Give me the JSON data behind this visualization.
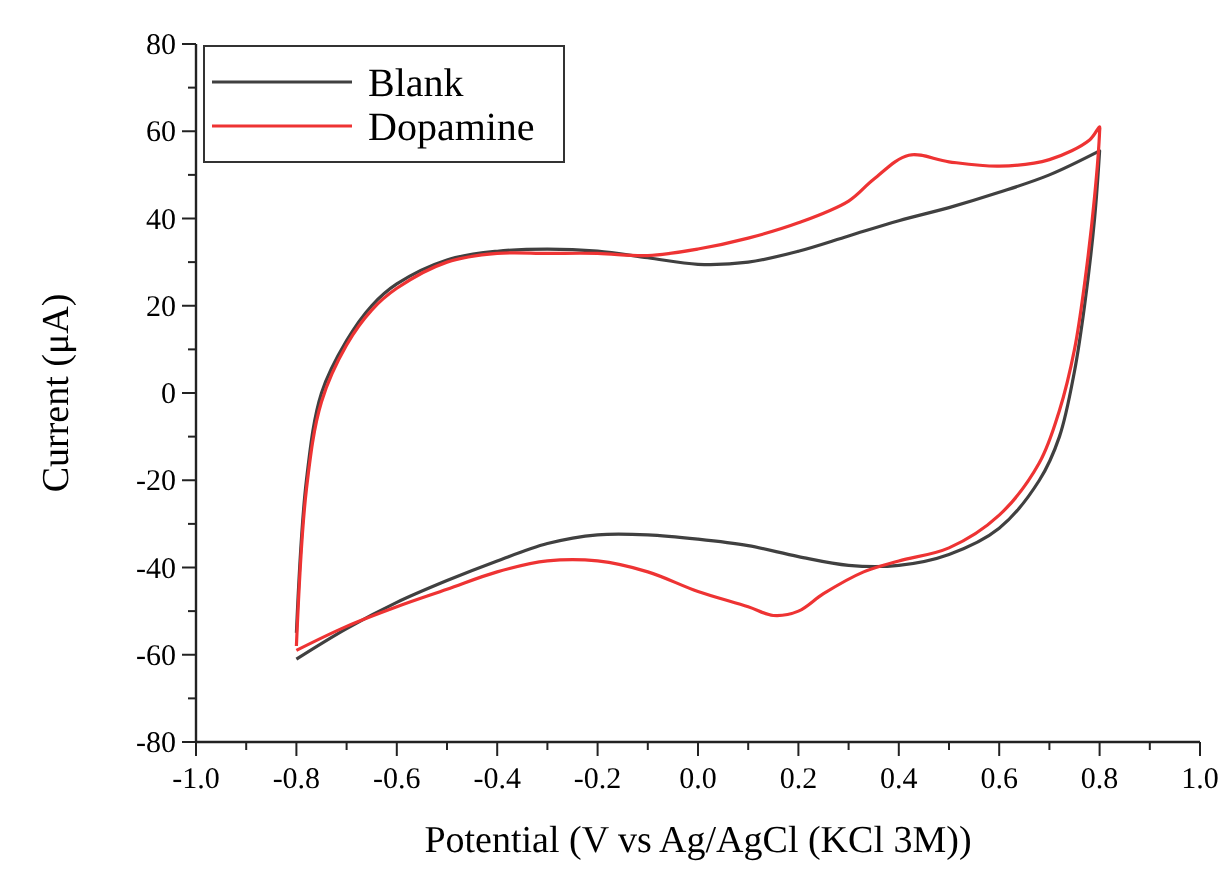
{
  "chart_data": {
    "type": "line",
    "xlabel": "Potential (V vs Ag/AgCl (KCl 3M))",
    "ylabel": "Current (μA)",
    "xlim": [
      -1.0,
      1.0
    ],
    "xticks": [
      {
        "value": -1.0,
        "label": "-1.0"
      },
      {
        "value": -0.9,
        "label": null
      },
      {
        "value": -0.8,
        "label": "-0.8"
      },
      {
        "value": -0.7,
        "label": null
      },
      {
        "value": -0.6,
        "label": "-0.6"
      },
      {
        "value": -0.5,
        "label": null
      },
      {
        "value": -0.4,
        "label": "-0.4"
      },
      {
        "value": -0.3,
        "label": null
      },
      {
        "value": -0.2,
        "label": "-0.2"
      },
      {
        "value": -0.1,
        "label": null
      },
      {
        "value": 0,
        "label": "0.0"
      },
      {
        "value": 0.1,
        "label": null
      },
      {
        "value": 0.2,
        "label": "0.2"
      },
      {
        "value": 0.3,
        "label": null
      },
      {
        "value": 0.4,
        "label": "0.4"
      },
      {
        "value": 0.5,
        "label": null
      },
      {
        "value": 0.6,
        "label": "0.6"
      },
      {
        "value": 0.7,
        "label": null
      },
      {
        "value": 0.8,
        "label": "0.8"
      },
      {
        "value": 0.9,
        "label": null
      },
      {
        "value": 1.0,
        "label": "1.0"
      }
    ],
    "ylim": [
      -80,
      80
    ],
    "yticks": [
      -80,
      {
        "value": -70,
        "label": null
      },
      -60,
      {
        "value": -50,
        "label": null
      },
      -40,
      {
        "value": -30,
        "label": null
      },
      -20,
      {
        "value": -10,
        "label": null
      },
      0,
      {
        "value": 10,
        "label": null
      },
      20,
      {
        "value": 30,
        "label": null
      },
      40,
      {
        "value": 50,
        "label": null
      },
      60,
      {
        "value": 70,
        "label": null
      },
      80
    ],
    "grid": false,
    "legend": "top left",
    "marker": "none",
    "line_style": "solid",
    "series": [
      {
        "name": "Blank",
        "color": "#404040",
        "x": [
          -0.8,
          -0.78,
          -0.75,
          -0.7,
          -0.65,
          -0.6,
          -0.5,
          -0.4,
          -0.3,
          -0.2,
          -0.1,
          0,
          0.1,
          0.2,
          0.3,
          0.4,
          0.5,
          0.6,
          0.7,
          0.8,
          0.8,
          0.79,
          0.77,
          0.75,
          0.72,
          0.68,
          0.6,
          0.5,
          0.4,
          0.3,
          0.2,
          0.1,
          0,
          -0.1,
          -0.2,
          -0.3,
          -0.4,
          -0.5,
          -0.6,
          -0.7,
          -0.8
        ],
        "values": [
          -55,
          -20,
          0,
          12,
          20,
          25,
          30.5,
          32.5,
          33,
          32.5,
          31,
          29.5,
          30,
          32.5,
          36,
          39.5,
          42.5,
          46,
          50,
          55.5,
          55.5,
          40,
          20,
          5,
          -10,
          -20,
          -31,
          -37,
          -39.5,
          -39.5,
          -37.5,
          -35,
          -33.5,
          -32.5,
          -32.5,
          -34.5,
          -38.5,
          -43,
          -48,
          -54,
          -61
        ]
      },
      {
        "name": "Dopamine",
        "color": "#ee3333",
        "x": [
          -0.8,
          -0.78,
          -0.75,
          -0.7,
          -0.65,
          -0.6,
          -0.5,
          -0.4,
          -0.3,
          -0.2,
          -0.1,
          0,
          0.1,
          0.2,
          0.3,
          0.35,
          0.42,
          0.5,
          0.6,
          0.7,
          0.78,
          0.8,
          0.8,
          0.79,
          0.77,
          0.75,
          0.72,
          0.68,
          0.6,
          0.5,
          0.4,
          0.33,
          0.25,
          0.2,
          0.15,
          0.1,
          0,
          -0.1,
          -0.2,
          -0.3,
          -0.4,
          -0.5,
          -0.6,
          -0.7,
          -0.8
        ],
        "values": [
          -58,
          -22,
          -2,
          11,
          19,
          24,
          30,
          32,
          32,
          32,
          31.5,
          33,
          35.5,
          39,
          44,
          49,
          54.5,
          53,
          52,
          53.5,
          58,
          61,
          60,
          45,
          25,
          10,
          -4,
          -16,
          -28,
          -35.5,
          -38.5,
          -41,
          -46,
          -50,
          -51,
          -49,
          -45.5,
          -41,
          -38.5,
          -38.5,
          -41,
          -45,
          -49,
          -53.5,
          -59
        ]
      }
    ]
  }
}
